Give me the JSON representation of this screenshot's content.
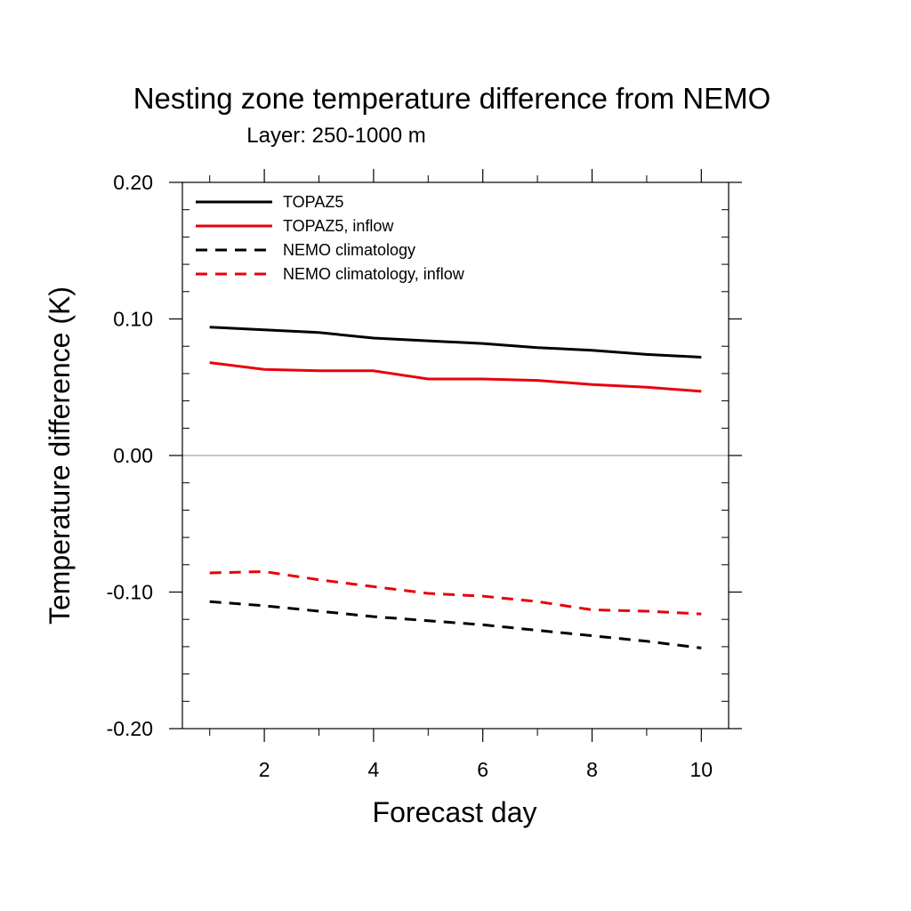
{
  "chart_data": {
    "type": "line",
    "title": "Nesting zone temperature difference from NEMO",
    "subtitle": "Layer: 250-1000 m",
    "xlabel": "Forecast day",
    "ylabel": "Temperature difference (K)",
    "xlim": [
      0.5,
      10.5
    ],
    "ylim": [
      -0.2,
      0.2
    ],
    "x_ticks": [
      2,
      4,
      6,
      8,
      10
    ],
    "x_tick_labels": [
      "2",
      "4",
      "6",
      "8",
      "10"
    ],
    "y_ticks": [
      -0.2,
      -0.1,
      0.0,
      0.1,
      0.2
    ],
    "y_tick_labels": [
      "-0.20",
      "-0.10",
      "0.00",
      "0.10",
      "0.20"
    ],
    "zero_line": true,
    "grid": false,
    "legend_position": "top-left",
    "x": [
      1,
      2,
      3,
      4,
      5,
      6,
      7,
      8,
      9,
      10
    ],
    "series": [
      {
        "name": "TOPAZ5",
        "color": "#000000",
        "dash": "solid",
        "values": [
          0.094,
          0.092,
          0.09,
          0.086,
          0.084,
          0.082,
          0.079,
          0.077,
          0.074,
          0.072
        ]
      },
      {
        "name": "TOPAZ5, inflow",
        "color": "#e8000b",
        "dash": "solid",
        "values": [
          0.068,
          0.063,
          0.062,
          0.062,
          0.056,
          0.056,
          0.055,
          0.052,
          0.05,
          0.047
        ]
      },
      {
        "name": "NEMO climatology",
        "color": "#000000",
        "dash": "dashed",
        "values": [
          -0.107,
          -0.11,
          -0.114,
          -0.118,
          -0.121,
          -0.124,
          -0.128,
          -0.132,
          -0.136,
          -0.141
        ]
      },
      {
        "name": "NEMO climatology, inflow",
        "color": "#e8000b",
        "dash": "dashed",
        "values": [
          -0.086,
          -0.085,
          -0.091,
          -0.096,
          -0.101,
          -0.103,
          -0.107,
          -0.113,
          -0.114,
          -0.116
        ]
      }
    ]
  }
}
